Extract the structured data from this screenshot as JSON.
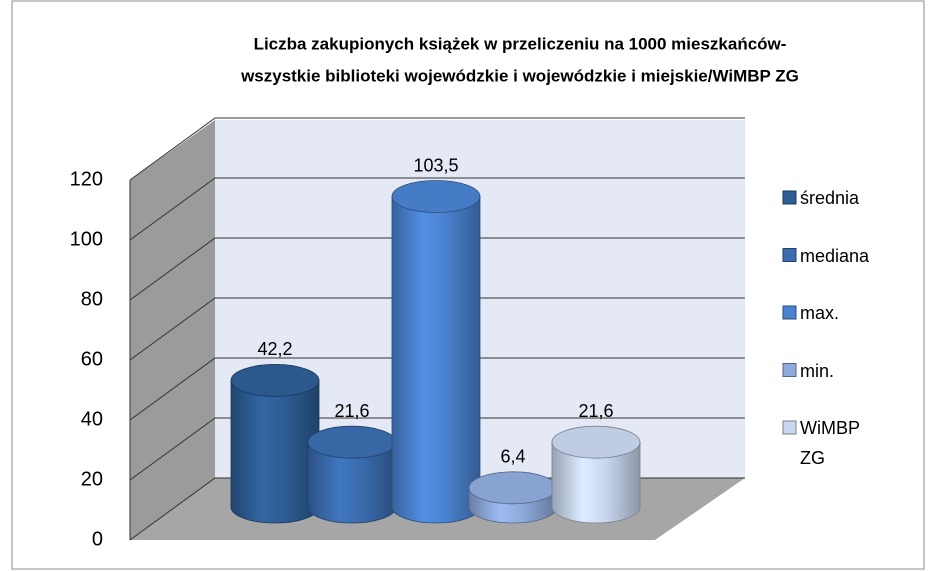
{
  "chart_data": {
    "type": "cylinder3d",
    "title_lines": [
      "Liczba zakupionych książek w przeliczeniu na 1000 mieszkańców-",
      "wszystkie biblioteki wojewódzkie i wojewódzkie i miejskie/WiMBP ZG"
    ],
    "series": [
      {
        "name": "średnia",
        "color": "#2d5d94",
        "values": [
          42.2
        ],
        "value_labels": [
          "42,2"
        ]
      },
      {
        "name": "mediana",
        "color": "#3a6cae",
        "values": [
          21.6
        ],
        "value_labels": [
          "21,6"
        ]
      },
      {
        "name": "max.",
        "color": "#4a82d0",
        "values": [
          103.5
        ],
        "value_labels": [
          "103,5"
        ]
      },
      {
        "name": "min.",
        "color": "#8faadc",
        "values": [
          6.4
        ],
        "value_labels": [
          "6,4"
        ]
      },
      {
        "name": "WiMBP ZG",
        "color": "#c9d7ef",
        "values": [
          21.6
        ],
        "value_labels": [
          "21,6"
        ]
      }
    ],
    "ylim": [
      0,
      120
    ],
    "yticks": [
      0,
      20,
      40,
      60,
      80,
      100,
      120
    ],
    "grid": true,
    "legend": "right"
  }
}
